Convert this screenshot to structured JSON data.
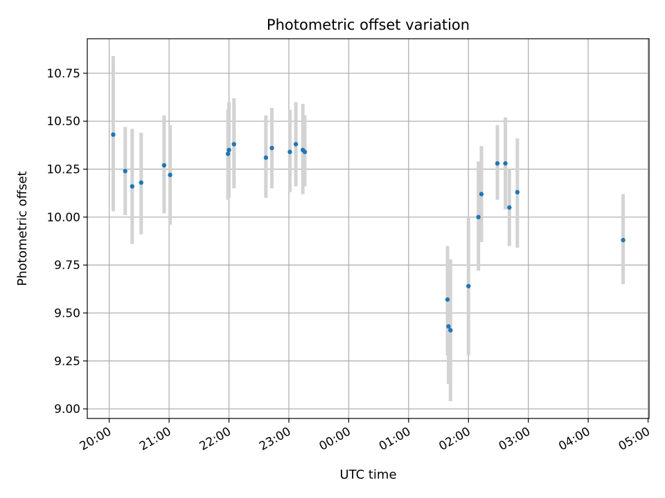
{
  "chart_data": {
    "type": "scatter",
    "title": "Photometric offset variation",
    "xlabel": "UTC time",
    "ylabel": "Photometric offset",
    "x_unit": "UTC time (hours; values past 24 are after midnight)",
    "xlim": [
      "19:38",
      "05:01"
    ],
    "ylim": [
      8.95,
      10.93
    ],
    "x_ticks": [
      "20:00",
      "21:00",
      "22:00",
      "23:00",
      "00:00",
      "01:00",
      "02:00",
      "03:00",
      "04:00",
      "05:00"
    ],
    "y_ticks": [
      "9.00",
      "9.25",
      "9.50",
      "9.75",
      "10.00",
      "10.25",
      "10.50",
      "10.75"
    ],
    "grid": true,
    "series": [
      {
        "style": "points with vertical error bars",
        "points": [
          {
            "x": "20:04",
            "y": 10.43,
            "low": 10.03,
            "high": 10.84
          },
          {
            "x": "20:16",
            "y": 10.24,
            "low": 10.01,
            "high": 10.47
          },
          {
            "x": "20:23",
            "y": 10.16,
            "low": 9.86,
            "high": 10.46
          },
          {
            "x": "20:32",
            "y": 10.18,
            "low": 9.91,
            "high": 10.44
          },
          {
            "x": "20:55",
            "y": 10.27,
            "low": 10.02,
            "high": 10.53
          },
          {
            "x": "21:01",
            "y": 10.22,
            "low": 9.96,
            "high": 10.48
          },
          {
            "x": "21:59",
            "y": 10.33,
            "low": 10.09,
            "high": 10.56
          },
          {
            "x": "22:00",
            "y": 10.35,
            "low": 10.1,
            "high": 10.6
          },
          {
            "x": "22:05",
            "y": 10.38,
            "low": 10.15,
            "high": 10.62
          },
          {
            "x": "22:37",
            "y": 10.31,
            "low": 10.1,
            "high": 10.53
          },
          {
            "x": "22:43",
            "y": 10.36,
            "low": 10.15,
            "high": 10.57
          },
          {
            "x": "23:01",
            "y": 10.34,
            "low": 10.13,
            "high": 10.56
          },
          {
            "x": "23:07",
            "y": 10.38,
            "low": 10.16,
            "high": 10.6
          },
          {
            "x": "23:14",
            "y": 10.35,
            "low": 10.12,
            "high": 10.59
          },
          {
            "x": "23:16",
            "y": 10.34,
            "low": 10.16,
            "high": 10.53
          },
          {
            "x": "01:39",
            "y": 9.57,
            "low": 9.28,
            "high": 9.85
          },
          {
            "x": "01:40",
            "y": 9.43,
            "low": 9.13,
            "high": 9.78
          },
          {
            "x": "01:42",
            "y": 9.41,
            "low": 9.04,
            "high": 9.78
          },
          {
            "x": "02:00",
            "y": 9.64,
            "low": 9.28,
            "high": 10.0
          },
          {
            "x": "02:10",
            "y": 10.0,
            "low": 9.72,
            "high": 10.29
          },
          {
            "x": "02:13",
            "y": 10.12,
            "low": 9.87,
            "high": 10.37
          },
          {
            "x": "02:29",
            "y": 10.28,
            "low": 10.09,
            "high": 10.48
          },
          {
            "x": "02:37",
            "y": 10.28,
            "low": 10.04,
            "high": 10.52
          },
          {
            "x": "02:41",
            "y": 10.05,
            "low": 9.85,
            "high": 10.25
          },
          {
            "x": "02:49",
            "y": 10.13,
            "low": 9.84,
            "high": 10.41
          },
          {
            "x": "04:35",
            "y": 9.88,
            "low": 9.65,
            "high": 10.12
          }
        ]
      }
    ],
    "colors": {
      "marker": "#1f77b4",
      "error_bar": "#d3d3d3",
      "grid": "#b0b0b0",
      "axes": "#000000"
    }
  }
}
